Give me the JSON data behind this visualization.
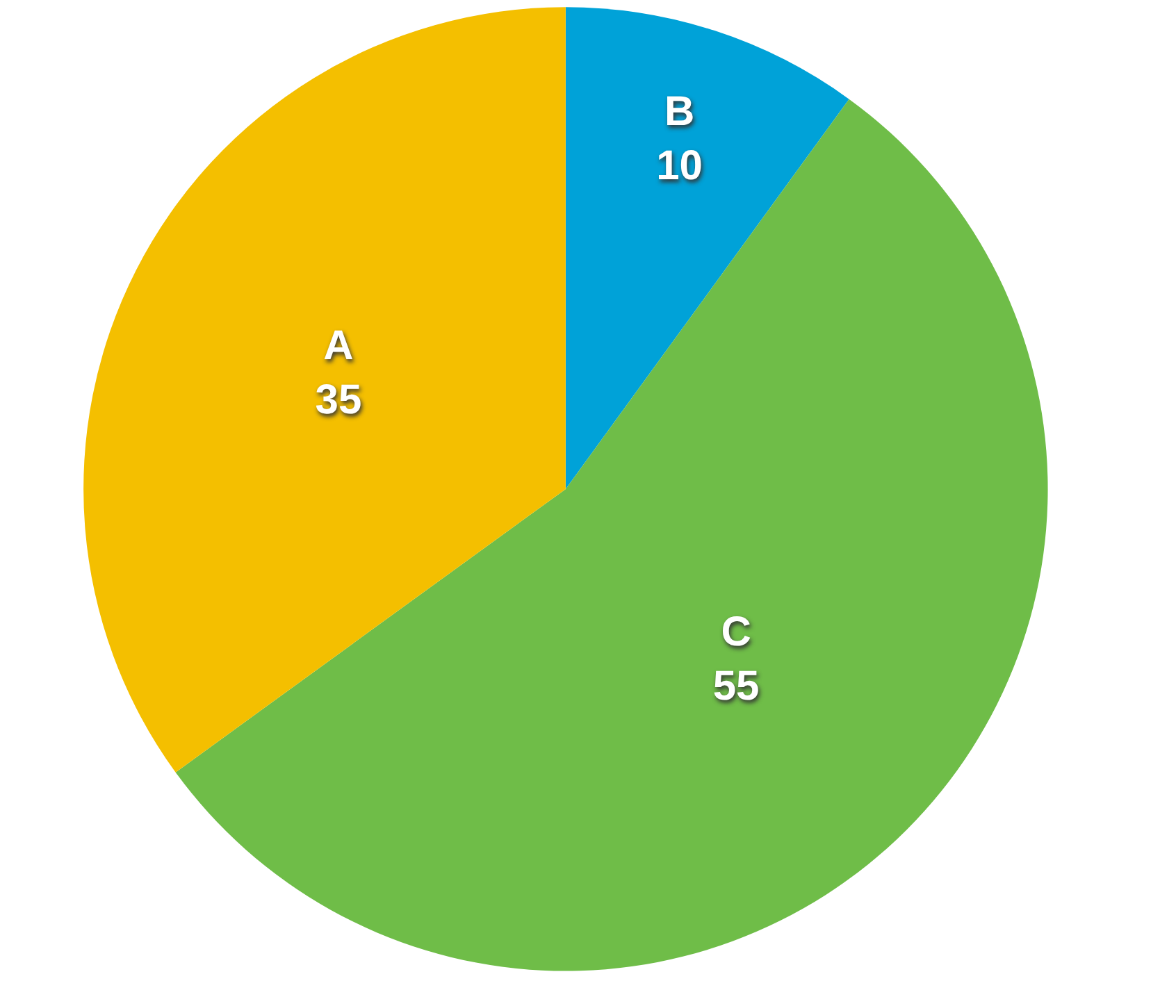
{
  "chart_data": {
    "type": "pie",
    "categories": [
      "B",
      "C",
      "A"
    ],
    "values": [
      10,
      55,
      35
    ],
    "colors": [
      "#00a2d8",
      "#6fbd48",
      "#f4bf00"
    ],
    "data_labels": true
  }
}
